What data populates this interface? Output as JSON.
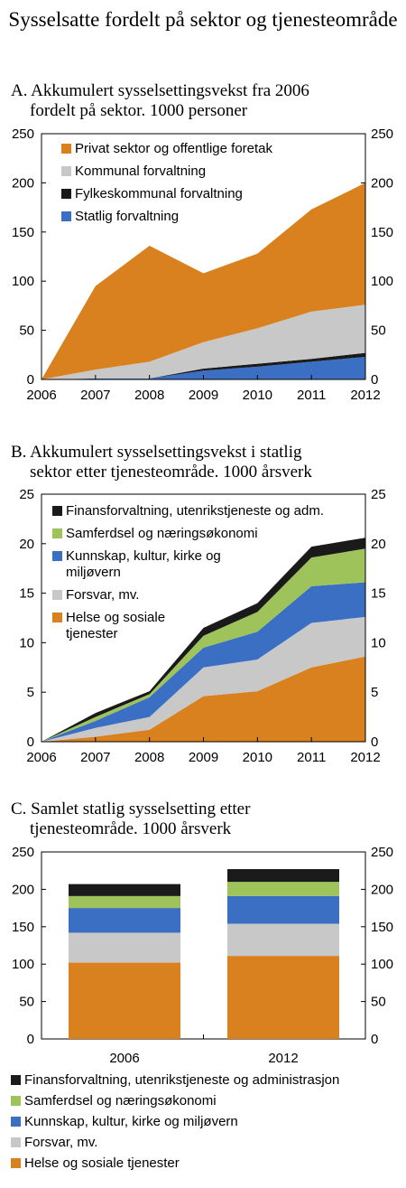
{
  "title": "Sysselsatte fordelt på sektor og tjenesteområde",
  "colors": {
    "orange": "#d9801f",
    "grey": "#c8c8c8",
    "black": "#1a1a1a",
    "blue": "#3a6fc4",
    "green": "#9dc35a"
  },
  "panels": {
    "a": {
      "title": "A.  Akkumulert sysselsettingsvekst fra 2006",
      "title2": "fordelt på sektor. 1000 personer"
    },
    "b": {
      "title": "B.  Akkumulert sysselsettingsvekst i statlig",
      "title2": "sektor etter tjenesteområde. 1000 årsverk"
    },
    "c": {
      "title": "C.  Samlet statlig sysselsetting etter",
      "title2": "tjenesteområde. 1000 årsverk"
    }
  },
  "chart_data": [
    {
      "id": "a",
      "type": "area",
      "stacked": true,
      "x": [
        2006,
        2007,
        2008,
        2009,
        2010,
        2011,
        2012
      ],
      "ylim": [
        0,
        250
      ],
      "yticks": [
        0,
        50,
        100,
        150,
        200,
        250
      ],
      "legend_position": "top-left",
      "series": [
        {
          "name": "Statlig forvaltning",
          "color": "blue",
          "values": [
            0,
            1,
            1,
            9,
            13,
            18,
            23
          ]
        },
        {
          "name": "Fylkeskommunal forvaltning",
          "color": "black",
          "values": [
            0,
            0,
            0,
            2,
            3,
            3,
            4
          ]
        },
        {
          "name": "Kommunal forvaltning",
          "color": "grey",
          "values": [
            0,
            9,
            17,
            27,
            36,
            48,
            49
          ]
        },
        {
          "name": "Privat sektor og offentlige foretak",
          "color": "orange",
          "values": [
            0,
            85,
            118,
            70,
            76,
            104,
            124
          ]
        }
      ]
    },
    {
      "id": "b",
      "type": "area",
      "stacked": true,
      "x": [
        2006,
        2007,
        2008,
        2009,
        2010,
        2011,
        2012
      ],
      "ylim": [
        0,
        25
      ],
      "yticks": [
        0,
        5,
        10,
        15,
        20,
        25
      ],
      "legend_position": "top-left",
      "series": [
        {
          "name": "Helse og sosiale tjenester",
          "color": "orange",
          "values": [
            0,
            0.5,
            1.2,
            4.6,
            5.1,
            7.5,
            8.6
          ]
        },
        {
          "name": "Forsvar, mv.",
          "color": "grey",
          "values": [
            0,
            0.9,
            1.3,
            2.9,
            3.2,
            4.5,
            4.0
          ]
        },
        {
          "name": "Kunnskap, kultur, kirke og miljøvern",
          "color": "blue",
          "values": [
            0,
            0.7,
            2.0,
            2.0,
            2.8,
            3.7,
            3.5
          ]
        },
        {
          "name": "Samferdsel og næringsøkonomi",
          "color": "green",
          "values": [
            0,
            0.4,
            0.3,
            1.2,
            2.0,
            2.9,
            3.4
          ]
        },
        {
          "name": "Finansforvaltning, utenrikstjeneste og adm.",
          "color": "black",
          "values": [
            0,
            0.4,
            0.3,
            0.8,
            0.9,
            1.1,
            1.1
          ]
        }
      ]
    },
    {
      "id": "c",
      "type": "bar",
      "stacked": true,
      "categories": [
        "2006",
        "2012"
      ],
      "ylim": [
        0,
        250
      ],
      "yticks": [
        0,
        50,
        100,
        150,
        200,
        250
      ],
      "legend_position": "bottom",
      "series": [
        {
          "name": "Helse og sosiale tjenester",
          "color": "orange",
          "values": [
            102,
            111
          ]
        },
        {
          "name": "Forsvar, mv.",
          "color": "grey",
          "values": [
            40,
            43
          ]
        },
        {
          "name": "Kunnskap, kultur, kirke og miljøvern",
          "color": "blue",
          "values": [
            33,
            37
          ]
        },
        {
          "name": "Samferdsel og næringsøkonomi",
          "color": "green",
          "values": [
            16,
            19
          ]
        },
        {
          "name": "Finansforvaltning, utenrikstjeneste og administrasjon",
          "color": "black",
          "values": [
            16,
            17
          ]
        }
      ]
    }
  ]
}
